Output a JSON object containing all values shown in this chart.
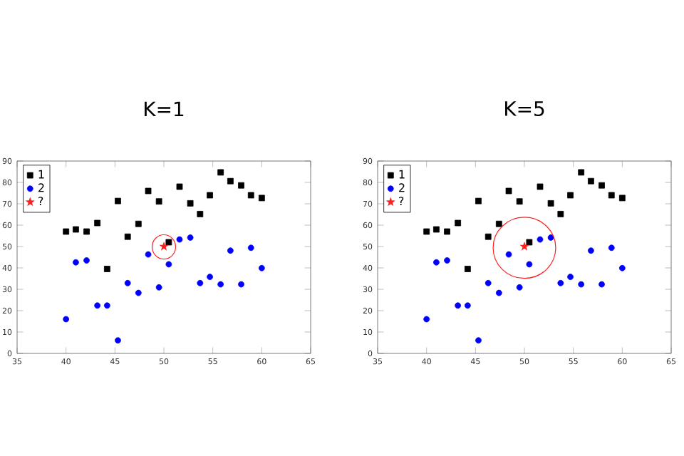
{
  "chart_data": [
    {
      "type": "scatter",
      "title": "K=1",
      "xlim": [
        35,
        65
      ],
      "ylim": [
        0,
        90
      ],
      "xticks": [
        35,
        40,
        45,
        50,
        55,
        60,
        65
      ],
      "yticks": [
        0,
        10,
        20,
        30,
        40,
        50,
        60,
        70,
        80,
        90
      ],
      "legend": "top left",
      "grid": false,
      "series": [
        {
          "name": "1",
          "color": "#000000",
          "marker": "square",
          "x": [
            40,
            41,
            42.1,
            43.2,
            44.2,
            45.3,
            46.3,
            47.4,
            48.4,
            49.5,
            50.5,
            51.6,
            52.7,
            53.7,
            54.7,
            55.8,
            56.8,
            57.9,
            58.9,
            60
          ],
          "values": [
            57,
            58,
            57,
            61,
            39.5,
            71.3,
            54.6,
            60.6,
            76,
            71.1,
            52,
            78,
            70.2,
            65.2,
            74,
            84.7,
            80.6,
            78.6,
            74,
            72.7
          ]
        },
        {
          "name": "2",
          "color": "#0000ff",
          "marker": "circle",
          "x": [
            40,
            41,
            42.1,
            43.2,
            44.2,
            45.3,
            46.3,
            47.4,
            48.4,
            49.5,
            50.5,
            51.6,
            52.7,
            53.7,
            54.7,
            55.8,
            56.8,
            57.9,
            58.9,
            60
          ],
          "values": [
            16,
            42.6,
            43.5,
            22.4,
            22.4,
            6.1,
            32.9,
            28.3,
            46.3,
            30.9,
            41.7,
            53.3,
            54.2,
            32.9,
            35.8,
            32.3,
            48.1,
            32.3,
            49.4,
            39.9
          ]
        },
        {
          "name": "?",
          "color": "#ff2020",
          "marker": "star",
          "x": [
            50
          ],
          "values": [
            50
          ]
        }
      ]
    },
    {
      "type": "scatter",
      "title": "K=5",
      "xlim": [
        35,
        65
      ],
      "ylim": [
        0,
        90
      ],
      "xticks": [
        35,
        40,
        45,
        50,
        55,
        60,
        65
      ],
      "yticks": [
        0,
        10,
        20,
        30,
        40,
        50,
        60,
        70,
        80,
        90
      ],
      "legend": "top left",
      "grid": false,
      "series": [
        {
          "name": "1",
          "color": "#000000",
          "marker": "square",
          "x": [
            40,
            41,
            42.1,
            43.2,
            44.2,
            45.3,
            46.3,
            47.4,
            48.4,
            49.5,
            50.5,
            51.6,
            52.7,
            53.7,
            54.7,
            55.8,
            56.8,
            57.9,
            58.9,
            60
          ],
          "values": [
            57,
            58,
            57,
            61,
            39.5,
            71.3,
            54.6,
            60.6,
            76,
            71.1,
            52,
            78,
            70.2,
            65.2,
            74,
            84.7,
            80.6,
            78.6,
            74,
            72.7
          ]
        },
        {
          "name": "2",
          "color": "#0000ff",
          "marker": "circle",
          "x": [
            40,
            41,
            42.1,
            43.2,
            44.2,
            45.3,
            46.3,
            47.4,
            48.4,
            49.5,
            50.5,
            51.6,
            52.7,
            53.7,
            54.7,
            55.8,
            56.8,
            57.9,
            58.9,
            60
          ],
          "values": [
            16,
            42.6,
            43.5,
            22.4,
            22.4,
            6.1,
            32.9,
            28.3,
            46.3,
            30.9,
            41.7,
            53.3,
            54.2,
            32.9,
            35.8,
            32.3,
            48.1,
            32.3,
            49.4,
            39.9
          ]
        },
        {
          "name": "?",
          "color": "#ff2020",
          "marker": "star",
          "x": [
            50
          ],
          "values": [
            50
          ]
        }
      ]
    }
  ]
}
